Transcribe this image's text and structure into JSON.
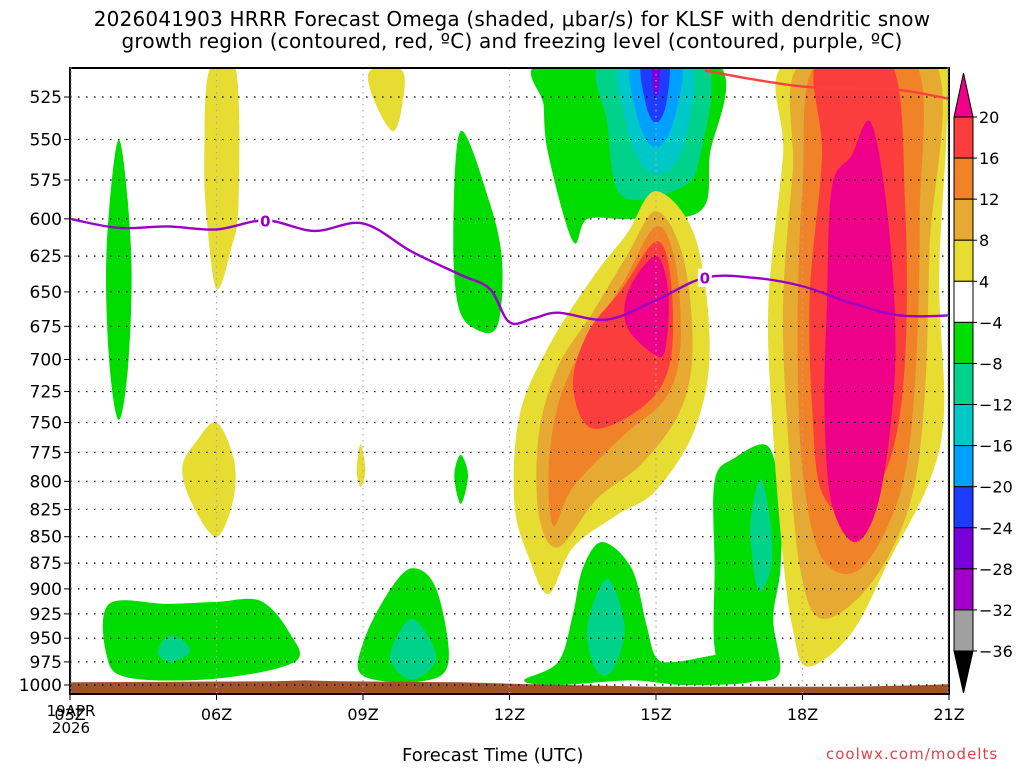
{
  "chart_data": {
    "type": "heatmap",
    "title_line1": "2026041903 HRRR Forecast Omega (shaded, μbar/s) for KLSF with dendritic snow",
    "title_line2": "growth region (contoured, red, ºC) and freezing level (contoured, purple, ºC)",
    "xlabel": "Forecast Time (UTC)",
    "ylabel": "",
    "credit": "coolwx.com/modelts",
    "x_ticks": [
      "03Z",
      "06Z",
      "09Z",
      "12Z",
      "15Z",
      "18Z",
      "21Z"
    ],
    "x_hours": [
      3,
      6,
      9,
      12,
      15,
      18,
      21
    ],
    "x_range_hours": [
      3,
      21
    ],
    "start_date_lines": [
      "19APR",
      "2026"
    ],
    "y_ticks": [
      525,
      550,
      575,
      600,
      625,
      650,
      675,
      700,
      725,
      750,
      775,
      800,
      825,
      850,
      875,
      900,
      925,
      950,
      975,
      1000
    ],
    "y_range_mb": [
      510,
      1010
    ],
    "y_inverted": true,
    "grid": true,
    "colorbar": {
      "placement": "right",
      "labels": [
        "20",
        "16",
        "12",
        "8",
        "4",
        "−4",
        "−8",
        "−12",
        "−16",
        "−20",
        "−24",
        "−28",
        "−32",
        "−36"
      ],
      "bins": [
        {
          "range": ">20",
          "color": "#ee0088"
        },
        {
          "range": "16 to 20",
          "color": "#fc3d3d"
        },
        {
          "range": "12 to 16",
          "color": "#f08228"
        },
        {
          "range": "8 to 12",
          "color": "#e6aa32"
        },
        {
          "range": "4 to 8",
          "color": "#e6dc32"
        },
        {
          "range": "-4 to 4",
          "color": "#ffffff"
        },
        {
          "range": "-8 to -4",
          "color": "#00dc00"
        },
        {
          "range": "-12 to -8",
          "color": "#00d28c"
        },
        {
          "range": "-16 to -12",
          "color": "#00c8c8"
        },
        {
          "range": "-20 to -16",
          "color": "#00a0ff"
        },
        {
          "range": "-24 to -20",
          "color": "#1e3cff"
        },
        {
          "range": "-28 to -24",
          "color": "#7800dc"
        },
        {
          "range": "-32 to -28",
          "color": "#a000c8"
        },
        {
          "range": "-36 to -32",
          "color": "#a0a0a0"
        },
        {
          "range": "<-36",
          "color": "#000000"
        }
      ]
    },
    "freezing_level": {
      "label": "0",
      "color": "#9a00c8",
      "hours": [
        3,
        4,
        5,
        6,
        7,
        8,
        9,
        10,
        11,
        11.6,
        12,
        12.5,
        13,
        14,
        15,
        16,
        17,
        18,
        19,
        20,
        21
      ],
      "pressure_mb": [
        600,
        606,
        605,
        607,
        601,
        608,
        603,
        622,
        638,
        648,
        672,
        669,
        665,
        670,
        656,
        640,
        640,
        646,
        658,
        667,
        667
      ]
    },
    "dgz_top_contour": {
      "color": "#fc4040",
      "hours": [
        16,
        17,
        18,
        19,
        20,
        21
      ],
      "pressure_mb": [
        510,
        515,
        519,
        520,
        521,
        526
      ]
    },
    "terrain_color": "#a0522d",
    "terrain_pressure_mb": 1000,
    "omega_features": [
      {
        "desc": "upward motion max near 15Z",
        "hour": 14.8,
        "pressure_mb": 640,
        "max_value": ">20"
      },
      {
        "desc": "upward motion max 18Z-20Z",
        "hour": 19,
        "pressure_mb": 700,
        "max_value": ">20"
      },
      {
        "desc": "subsidence max near 15Z aloft",
        "hour": 15,
        "pressure_mb": 520,
        "min_value": "-28 to -24"
      },
      {
        "desc": "low-level subsidence 10Z",
        "hour": 10,
        "pressure_mb": 960,
        "min_value": "-12 to -8"
      },
      {
        "desc": "low-level subsidence 14Z",
        "hour": 14,
        "pressure_mb": 930,
        "min_value": "-12 to -8"
      }
    ]
  }
}
